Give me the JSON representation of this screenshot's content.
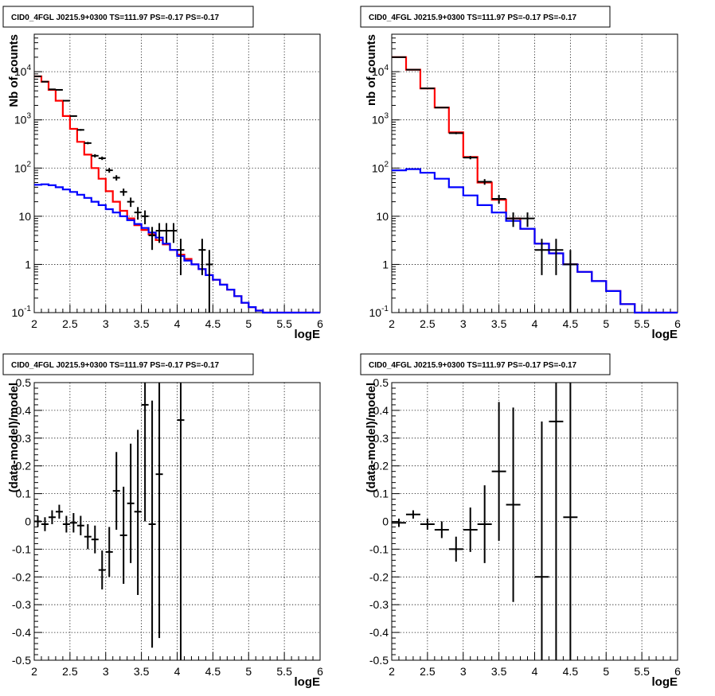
{
  "chart_data": [
    {
      "type": "step-histogram",
      "title": "CID0_4FGL J0215.9+0300 TS=111.97 PS=-0.17 PS=-0.17",
      "xlabel": "logE",
      "ylabel": "Nb of counts",
      "xlim": [
        2,
        6
      ],
      "ylim": [
        0.1,
        60000
      ],
      "yscale": "log",
      "grid": true,
      "x_ticks": [
        "2",
        "2.5",
        "3",
        "3.5",
        "4",
        "4.5",
        "5",
        "5.5",
        "6"
      ],
      "y_ticks": [
        {
          "v": 0.1,
          "label": "10",
          "exp": "-1"
        },
        {
          "v": 1,
          "label": "1",
          "exp": ""
        },
        {
          "v": 10,
          "label": "10",
          "exp": ""
        },
        {
          "v": 100,
          "label": "10",
          "exp": "2"
        },
        {
          "v": 1000,
          "label": "10",
          "exp": "3"
        },
        {
          "v": 10000,
          "label": "10",
          "exp": "4"
        }
      ],
      "series": [
        {
          "color": "#ff0000",
          "bin_width": 0.1,
          "x_start": 2.0,
          "values": [
            8000,
            6200,
            4200,
            2500,
            1200,
            650,
            350,
            190,
            100,
            60,
            33,
            20,
            13,
            9,
            6.5,
            5.2,
            4.2,
            3.2,
            2.6,
            2.0,
            1.6,
            1.3,
            1.0,
            0.8,
            0.6,
            0.48,
            0.38,
            0.3,
            0.22,
            0.16,
            0.13,
            0.11,
            0.1,
            0.1,
            0.1,
            0.1,
            0.1,
            0.1,
            0.1,
            0.1
          ]
        },
        {
          "color": "#0000ff",
          "bin_width": 0.1,
          "x_start": 2.0,
          "values": [
            45,
            46,
            44,
            40,
            36,
            32,
            28,
            24,
            20,
            17,
            14,
            12,
            10,
            8.3,
            6.9,
            5.7,
            4.6,
            3.6,
            2.7,
            2.0,
            1.5,
            1.2,
            1.0,
            0.8,
            0.6,
            0.48,
            0.38,
            0.3,
            0.22,
            0.16,
            0.13,
            0.11,
            0.1,
            0.1,
            0.1,
            0.1,
            0.1,
            0.1,
            0.1,
            0.1
          ]
        }
      ],
      "points": {
        "color": "#000000",
        "x_half_width": 0.05,
        "data": [
          {
            "x": 2.05,
            "y": 8000,
            "lo": 7900,
            "hi": 8100
          },
          {
            "x": 2.15,
            "y": 6200,
            "lo": 6100,
            "hi": 6300
          },
          {
            "x": 2.25,
            "y": 4300,
            "lo": 4200,
            "hi": 4400
          },
          {
            "x": 2.35,
            "y": 4200,
            "lo": 4100,
            "hi": 4300
          },
          {
            "x": 2.45,
            "y": 2500,
            "lo": 2450,
            "hi": 2550
          },
          {
            "x": 2.55,
            "y": 1200,
            "lo": 1165,
            "hi": 1235
          },
          {
            "x": 2.65,
            "y": 620,
            "lo": 595,
            "hi": 645
          },
          {
            "x": 2.75,
            "y": 330,
            "lo": 312,
            "hi": 348
          },
          {
            "x": 2.85,
            "y": 180,
            "lo": 166,
            "hi": 194
          },
          {
            "x": 2.95,
            "y": 160,
            "lo": 147,
            "hi": 173
          },
          {
            "x": 3.05,
            "y": 90,
            "lo": 80,
            "hi": 100
          },
          {
            "x": 3.15,
            "y": 63,
            "lo": 55,
            "hi": 71
          },
          {
            "x": 3.25,
            "y": 32,
            "lo": 26.5,
            "hi": 37.5
          },
          {
            "x": 3.35,
            "y": 20,
            "lo": 15.6,
            "hi": 24.4
          },
          {
            "x": 3.45,
            "y": 12,
            "lo": 8.5,
            "hi": 15.5
          },
          {
            "x": 3.55,
            "y": 10,
            "lo": 6.8,
            "hi": 13.2
          },
          {
            "x": 3.65,
            "y": 4,
            "lo": 2.0,
            "hi": 6.0
          },
          {
            "x": 3.75,
            "y": 5,
            "lo": 2.8,
            "hi": 7.2
          },
          {
            "x": 3.85,
            "y": 5,
            "lo": 2.8,
            "hi": 7.2
          },
          {
            "x": 3.95,
            "y": 5,
            "lo": 2.8,
            "hi": 7.2
          },
          {
            "x": 4.05,
            "y": 2,
            "lo": 0.6,
            "hi": 3.4
          },
          {
            "x": 4.35,
            "y": 2,
            "lo": 0.6,
            "hi": 3.4
          },
          {
            "x": 4.45,
            "y": 1,
            "lo": 0.05,
            "hi": 2.0
          }
        ]
      }
    },
    {
      "type": "step-histogram",
      "title": "CID0_4FGL J0215.9+0300 TS=111.97 PS=-0.17 PS=-0.17",
      "xlabel": "logE",
      "ylabel": "nb of counts",
      "xlim": [
        2,
        6
      ],
      "ylim": [
        0.1,
        60000
      ],
      "yscale": "log",
      "grid": true,
      "x_ticks": [
        "2",
        "2.5",
        "3",
        "3.5",
        "4",
        "4.5",
        "5",
        "5.5",
        "6"
      ],
      "y_ticks": [
        {
          "v": 0.1,
          "label": "10",
          "exp": "-1"
        },
        {
          "v": 1,
          "label": "1",
          "exp": ""
        },
        {
          "v": 10,
          "label": "10",
          "exp": ""
        },
        {
          "v": 100,
          "label": "10",
          "exp": "2"
        },
        {
          "v": 1000,
          "label": "10",
          "exp": "3"
        },
        {
          "v": 10000,
          "label": "10",
          "exp": "4"
        }
      ],
      "series": [
        {
          "color": "#ff0000",
          "bin_width": 0.2,
          "x_start": 2.0,
          "values": [
            20000,
            11000,
            4500,
            1800,
            550,
            170,
            50,
            22,
            9,
            5.5,
            2.7,
            1.7,
            1.0,
            0.7,
            0.45,
            0.28,
            0.15,
            0.1,
            0.1,
            0.1
          ]
        },
        {
          "color": "#0000ff",
          "bin_width": 0.2,
          "x_start": 2.0,
          "values": [
            90,
            95,
            80,
            60,
            40,
            27,
            17,
            12,
            8,
            5.5,
            2.7,
            1.7,
            1.0,
            0.7,
            0.45,
            0.28,
            0.15,
            0.1,
            0.1,
            0.1
          ]
        }
      ],
      "points": {
        "color": "#000000",
        "x_half_width": 0.1,
        "data": [
          {
            "x": 2.1,
            "y": 20000,
            "lo": 19850,
            "hi": 20150
          },
          {
            "x": 2.3,
            "y": 11000,
            "lo": 10890,
            "hi": 11110
          },
          {
            "x": 2.5,
            "y": 4500,
            "lo": 4430,
            "hi": 4570
          },
          {
            "x": 2.7,
            "y": 1800,
            "lo": 1755,
            "hi": 1845
          },
          {
            "x": 2.9,
            "y": 530,
            "lo": 505,
            "hi": 555
          },
          {
            "x": 3.1,
            "y": 165,
            "lo": 152,
            "hi": 178
          },
          {
            "x": 3.3,
            "y": 52,
            "lo": 45,
            "hi": 59
          },
          {
            "x": 3.5,
            "y": 23,
            "lo": 18.2,
            "hi": 27.8
          },
          {
            "x": 3.7,
            "y": 9,
            "lo": 6,
            "hi": 12
          },
          {
            "x": 3.9,
            "y": 9,
            "lo": 6,
            "hi": 12
          },
          {
            "x": 4.1,
            "y": 2,
            "lo": 0.6,
            "hi": 3.4
          },
          {
            "x": 4.3,
            "y": 2,
            "lo": 0.6,
            "hi": 3.4
          },
          {
            "x": 4.5,
            "y": 1,
            "lo": 0.05,
            "hi": 2.0
          }
        ]
      }
    },
    {
      "type": "scatter-errorbars",
      "title": "CID0_4FGL J0215.9+0300 TS=111.97 PS=-0.17 PS=-0.17",
      "xlabel": "logE",
      "ylabel": "(data-model)/model",
      "xlim": [
        2,
        6
      ],
      "ylim": [
        -0.5,
        0.5
      ],
      "grid": true,
      "x_ticks": [
        "2",
        "2.5",
        "3",
        "3.5",
        "4",
        "4.5",
        "5",
        "5.5",
        "6"
      ],
      "y_ticks": [
        "-0.5",
        "-0.4",
        "-0.3",
        "-0.2",
        "-0.1",
        "0",
        "0.1",
        "0.2",
        "0.3",
        "0.4",
        "0.5"
      ],
      "points": {
        "color": "#000000",
        "x_half_width": 0.05,
        "data": [
          {
            "x": 2.05,
            "y": 0.0,
            "lo": -0.02,
            "hi": 0.02
          },
          {
            "x": 2.15,
            "y": -0.01,
            "lo": -0.035,
            "hi": 0.015
          },
          {
            "x": 2.25,
            "y": 0.015,
            "lo": -0.01,
            "hi": 0.04
          },
          {
            "x": 2.35,
            "y": 0.035,
            "lo": 0.01,
            "hi": 0.06
          },
          {
            "x": 2.45,
            "y": -0.01,
            "lo": -0.04,
            "hi": 0.02
          },
          {
            "x": 2.55,
            "y": -0.005,
            "lo": -0.04,
            "hi": 0.03
          },
          {
            "x": 2.65,
            "y": -0.015,
            "lo": -0.05,
            "hi": 0.02
          },
          {
            "x": 2.75,
            "y": -0.055,
            "lo": -0.1,
            "hi": -0.01
          },
          {
            "x": 2.85,
            "y": -0.065,
            "lo": -0.115,
            "hi": -0.015
          },
          {
            "x": 2.95,
            "y": -0.175,
            "lo": -0.245,
            "hi": -0.105
          },
          {
            "x": 3.05,
            "y": -0.11,
            "lo": -0.2,
            "hi": -0.02
          },
          {
            "x": 3.15,
            "y": 0.11,
            "lo": -0.03,
            "hi": 0.25
          },
          {
            "x": 3.25,
            "y": -0.05,
            "lo": -0.225,
            "hi": 0.125
          },
          {
            "x": 3.35,
            "y": 0.065,
            "lo": -0.15,
            "hi": 0.28
          },
          {
            "x": 3.45,
            "y": 0.035,
            "lo": -0.265,
            "hi": 0.33
          },
          {
            "x": 3.55,
            "y": 0.42,
            "lo": 0.0,
            "hi": 0.5
          },
          {
            "x": 3.65,
            "y": -0.01,
            "lo": -0.455,
            "hi": 0.435
          },
          {
            "x": 3.75,
            "y": 0.17,
            "lo": -0.42,
            "hi": 0.5
          },
          {
            "x": 4.05,
            "y": 0.365,
            "lo": -0.5,
            "hi": 0.5
          }
        ]
      }
    },
    {
      "type": "scatter-errorbars",
      "title": "CID0_4FGL J0215.9+0300 TS=111.97 PS=-0.17 PS=-0.17",
      "xlabel": "logE",
      "ylabel": "(data-model)/model",
      "xlim": [
        2,
        6
      ],
      "ylim": [
        -0.5,
        0.5
      ],
      "grid": true,
      "x_ticks": [
        "2",
        "2.5",
        "3",
        "3.5",
        "4",
        "4.5",
        "5",
        "5.5",
        "6"
      ],
      "y_ticks": [
        "-0.5",
        "-0.4",
        "-0.3",
        "-0.2",
        "-0.1",
        "0",
        "0.1",
        "0.2",
        "0.3",
        "0.4",
        "0.5"
      ],
      "points": {
        "color": "#000000",
        "x_half_width": 0.1,
        "data": [
          {
            "x": 2.1,
            "y": -0.005,
            "lo": -0.02,
            "hi": 0.01
          },
          {
            "x": 2.3,
            "y": 0.025,
            "lo": 0.01,
            "hi": 0.04
          },
          {
            "x": 2.5,
            "y": -0.01,
            "lo": -0.03,
            "hi": 0.01
          },
          {
            "x": 2.7,
            "y": -0.03,
            "lo": -0.06,
            "hi": 0.0
          },
          {
            "x": 2.9,
            "y": -0.1,
            "lo": -0.145,
            "hi": -0.055
          },
          {
            "x": 3.1,
            "y": -0.03,
            "lo": -0.11,
            "hi": 0.05
          },
          {
            "x": 3.3,
            "y": -0.01,
            "lo": -0.15,
            "hi": 0.13
          },
          {
            "x": 3.5,
            "y": 0.18,
            "lo": -0.07,
            "hi": 0.43
          },
          {
            "x": 3.7,
            "y": 0.06,
            "lo": -0.29,
            "hi": 0.41
          },
          {
            "x": 4.1,
            "y": -0.2,
            "lo": -0.5,
            "hi": 0.36
          },
          {
            "x": 4.3,
            "y": 0.36,
            "lo": -0.5,
            "hi": 0.5
          },
          {
            "x": 4.5,
            "y": 0.015,
            "lo": -0.5,
            "hi": 0.5
          }
        ]
      }
    }
  ]
}
